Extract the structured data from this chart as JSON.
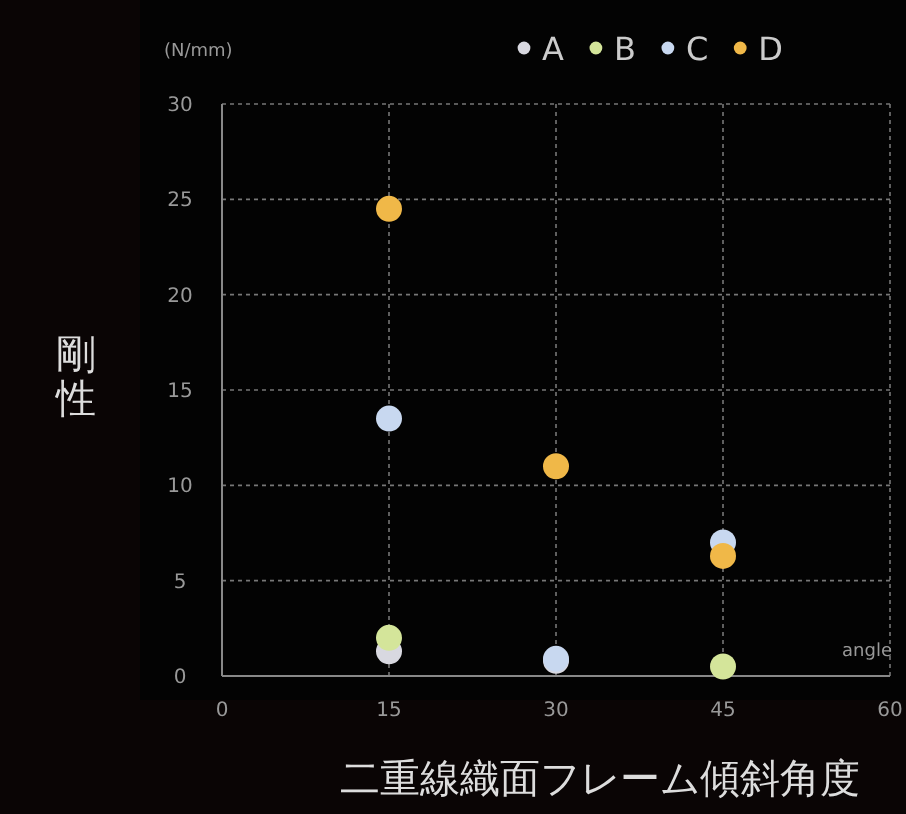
{
  "chart_data": {
    "type": "scatter",
    "xlabel": "二重線織面フレーム傾斜角度",
    "ylabel": "剛性",
    "annotations": [
      "(N/mm)",
      "angle"
    ],
    "x": [
      15,
      30,
      45
    ],
    "series": [
      {
        "name": "A",
        "color": "#d8d8e0",
        "values": [
          1.3,
          0.8,
          null
        ]
      },
      {
        "name": "B",
        "color": "#d4e59a",
        "values": [
          2,
          null,
          0.5
        ]
      },
      {
        "name": "C",
        "color": "#c8d8f0",
        "values": [
          13.5,
          0.9,
          7
        ]
      },
      {
        "name": "D",
        "color": "#f0b848",
        "values": [
          24.5,
          11,
          6.3
        ]
      }
    ],
    "xlim": [
      0,
      60
    ],
    "ylim": [
      0,
      30
    ],
    "xticks": [
      0,
      15,
      30,
      45,
      60
    ],
    "yticks": [
      0,
      5,
      10,
      15,
      20,
      25,
      30
    ],
    "grid": true,
    "legend": "top right",
    "marker": "circle"
  }
}
